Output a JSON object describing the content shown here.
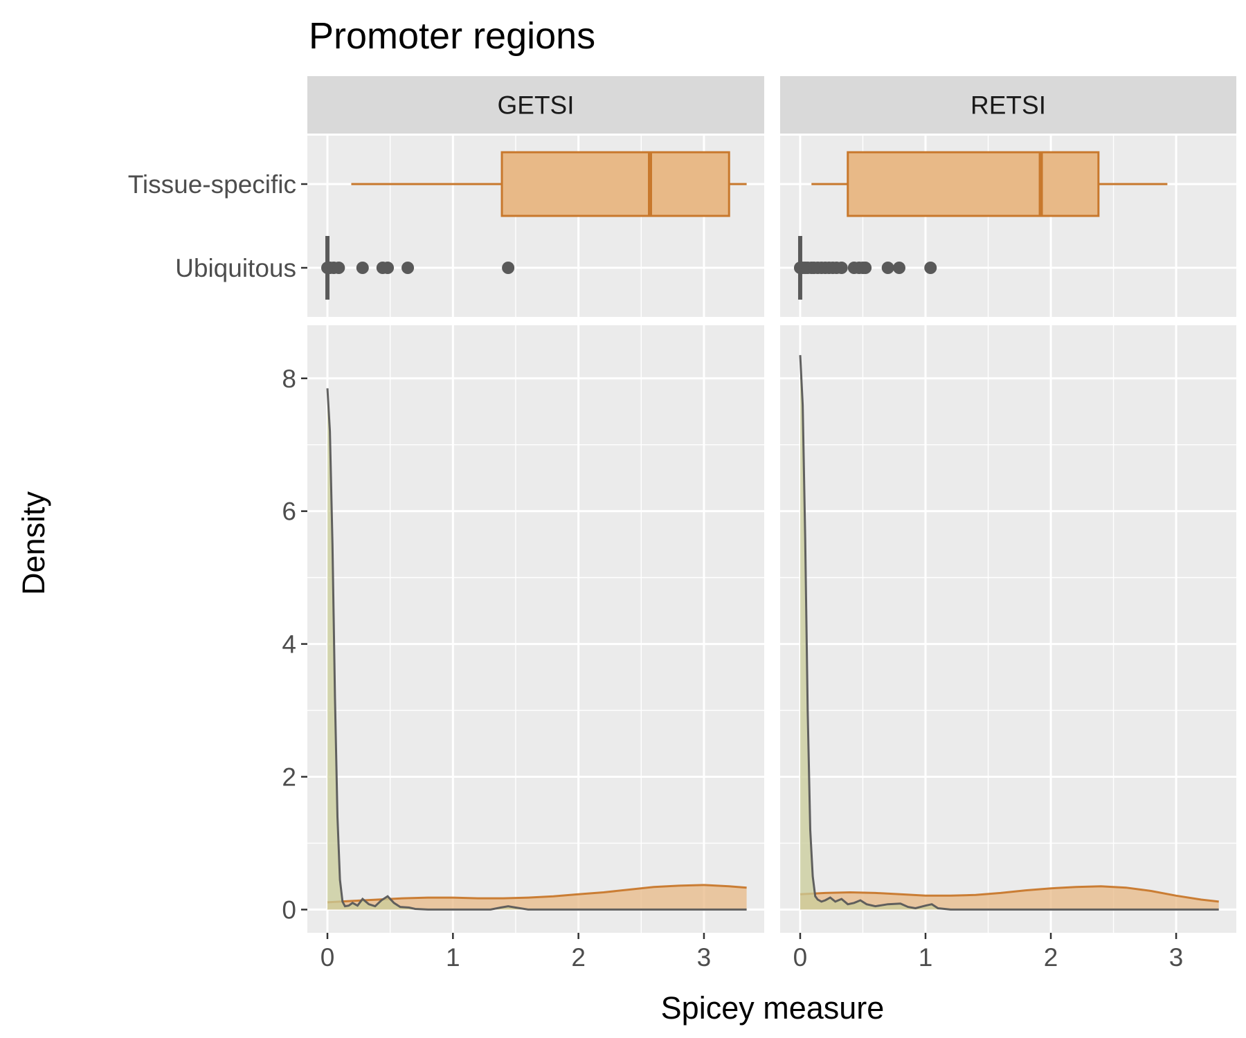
{
  "chart_data": {
    "type": "density",
    "title": "Promoter regions",
    "xlabel": "Spicey measure",
    "ylabel": "Density",
    "xlim": [
      -0.16,
      3.48
    ],
    "ylim": [
      -0.35,
      8.8
    ],
    "x_ticks": [
      0,
      1,
      2,
      3
    ],
    "y_ticks": [
      0,
      2,
      4,
      6,
      8
    ],
    "box_categories": [
      "Tissue-specific",
      "Ubiquitous"
    ],
    "colors": {
      "Tissue-specific": "#c8782c",
      "Ubiquitous": "#595959",
      "Ubiquitous_fill": "#c9cc99",
      "Tissue_fill": "#e8b987"
    },
    "panels": [
      {
        "label": "GETSI",
        "box": {
          "Tissue-specific": {
            "whisker_low": 0.19,
            "q1": 1.39,
            "median": 2.57,
            "q3": 3.2,
            "whisker_high": 3.34
          },
          "Ubiquitous": {
            "whisker_low": 0.0,
            "q1": 0.0,
            "median": 0.0,
            "q3": 0.0,
            "whisker_high": 0.01,
            "outliers": [
              0.0,
              0.02,
              0.05,
              0.09,
              0.28,
              0.44,
              0.48,
              0.64,
              1.44
            ]
          }
        },
        "density": {
          "Tissue-specific": {
            "x": [
              0.0,
              0.2,
              0.4,
              0.6,
              0.8,
              1.0,
              1.2,
              1.4,
              1.6,
              1.8,
              2.0,
              2.2,
              2.4,
              2.6,
              2.8,
              3.0,
              3.2,
              3.34
            ],
            "y": [
              0.11,
              0.13,
              0.15,
              0.17,
              0.18,
              0.18,
              0.17,
              0.17,
              0.18,
              0.2,
              0.23,
              0.26,
              0.3,
              0.34,
              0.36,
              0.37,
              0.35,
              0.33
            ]
          },
          "Ubiquitous": {
            "x": [
              0.0,
              0.02,
              0.04,
              0.06,
              0.08,
              0.1,
              0.12,
              0.14,
              0.17,
              0.2,
              0.24,
              0.28,
              0.33,
              0.38,
              0.43,
              0.48,
              0.53,
              0.58,
              0.65,
              0.7,
              0.8,
              1.0,
              1.3,
              1.38,
              1.44,
              1.5,
              1.6,
              2.0,
              2.5,
              3.0,
              3.34
            ],
            "y": [
              7.85,
              7.2,
              5.5,
              3.2,
              1.4,
              0.45,
              0.12,
              0.05,
              0.06,
              0.1,
              0.06,
              0.16,
              0.08,
              0.05,
              0.14,
              0.2,
              0.1,
              0.04,
              0.03,
              0.01,
              0.0,
              0.0,
              0.0,
              0.03,
              0.05,
              0.03,
              0.0,
              0.0,
              0.0,
              0.0,
              0.0
            ]
          }
        }
      },
      {
        "label": "RETSI",
        "box": {
          "Tissue-specific": {
            "whisker_low": 0.09,
            "q1": 0.38,
            "median": 1.92,
            "q3": 2.38,
            "whisker_high": 2.93
          },
          "Ubiquitous": {
            "whisker_low": 0.0,
            "q1": 0.0,
            "median": 0.0,
            "q3": 0.0,
            "whisker_high": 0.01,
            "outliers": [
              0.0,
              0.02,
              0.04,
              0.06,
              0.09,
              0.11,
              0.14,
              0.17,
              0.2,
              0.23,
              0.26,
              0.29,
              0.33,
              0.43,
              0.47,
              0.5,
              0.52,
              0.7,
              0.79,
              1.04
            ]
          }
        },
        "density": {
          "Tissue-specific": {
            "x": [
              0.0,
              0.2,
              0.4,
              0.6,
              0.8,
              1.0,
              1.2,
              1.4,
              1.6,
              1.8,
              2.0,
              2.2,
              2.4,
              2.6,
              2.8,
              3.0,
              3.2,
              3.34
            ],
            "y": [
              0.23,
              0.25,
              0.26,
              0.25,
              0.23,
              0.21,
              0.21,
              0.22,
              0.25,
              0.29,
              0.32,
              0.34,
              0.35,
              0.33,
              0.28,
              0.21,
              0.15,
              0.12
            ]
          },
          "Ubiquitous": {
            "x": [
              0.0,
              0.02,
              0.04,
              0.06,
              0.08,
              0.1,
              0.12,
              0.14,
              0.17,
              0.2,
              0.24,
              0.28,
              0.33,
              0.38,
              0.43,
              0.48,
              0.53,
              0.6,
              0.7,
              0.8,
              0.86,
              0.92,
              1.0,
              1.05,
              1.1,
              1.2,
              1.5,
              2.0,
              2.5,
              3.0,
              3.34
            ],
            "y": [
              8.35,
              7.6,
              5.6,
              3.0,
              1.2,
              0.5,
              0.2,
              0.15,
              0.12,
              0.14,
              0.18,
              0.12,
              0.16,
              0.08,
              0.1,
              0.14,
              0.08,
              0.05,
              0.08,
              0.09,
              0.04,
              0.02,
              0.06,
              0.08,
              0.02,
              0.0,
              0.0,
              0.0,
              0.0,
              0.0,
              0.0
            ]
          }
        }
      }
    ]
  }
}
